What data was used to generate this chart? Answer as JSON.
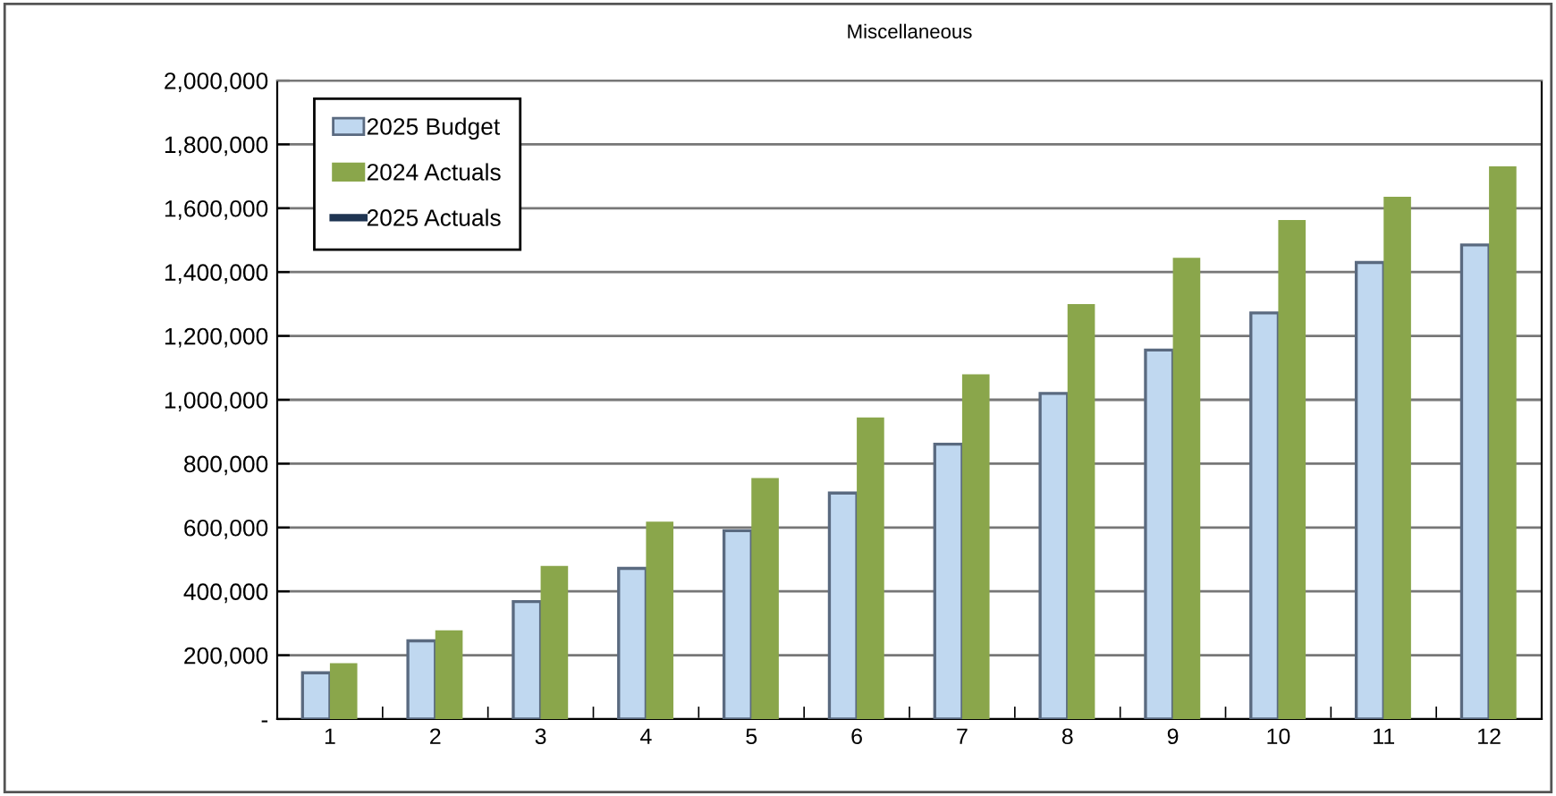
{
  "chart_data": {
    "type": "bar",
    "title": "Miscellaneous",
    "categories": [
      "1",
      "2",
      "3",
      "4",
      "5",
      "6",
      "7",
      "8",
      "9",
      "10",
      "11",
      "12"
    ],
    "series": [
      {
        "name": "2025 Budget",
        "color": "#c0d8f0",
        "values": [
          145000,
          245000,
          368000,
          472000,
          590000,
          708000,
          861000,
          1020000,
          1156000,
          1272000,
          1430000,
          1485000
        ]
      },
      {
        "name": "2024 Actuals",
        "color": "#8aa64b",
        "values": [
          175000,
          278000,
          480000,
          618000,
          755000,
          945000,
          1080000,
          1300000,
          1445000,
          1563000,
          1636000,
          1731000
        ]
      },
      {
        "name": "2025 Actuals",
        "color": "#1f3552",
        "type": "line",
        "values": [
          null,
          null,
          null,
          null,
          null,
          null,
          null,
          null,
          null,
          null,
          null,
          null
        ]
      }
    ],
    "ylim": [
      0,
      2000000
    ],
    "yticks": [
      {
        "value": 0,
        "label": "-"
      },
      {
        "value": 200000,
        "label": "200,000"
      },
      {
        "value": 400000,
        "label": "400,000"
      },
      {
        "value": 600000,
        "label": "600,000"
      },
      {
        "value": 800000,
        "label": "800,000"
      },
      {
        "value": 1000000,
        "label": "1,000,000"
      },
      {
        "value": 1200000,
        "label": "1,200,000"
      },
      {
        "value": 1400000,
        "label": "1,400,000"
      },
      {
        "value": 1600000,
        "label": "1,600,000"
      },
      {
        "value": 1800000,
        "label": "1,800,000"
      },
      {
        "value": 2000000,
        "label": "2,000,000"
      }
    ],
    "grid": "y",
    "legend": "top left"
  }
}
